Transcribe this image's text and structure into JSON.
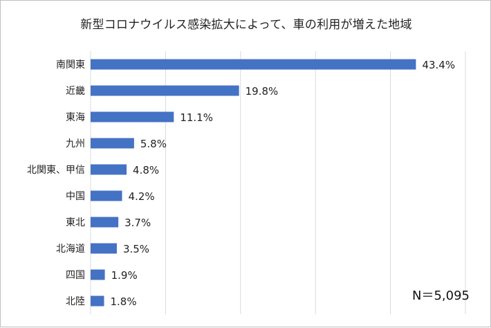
{
  "chart_data": {
    "type": "bar",
    "orientation": "horizontal",
    "title": "新型コロナウイルス感染拡大によって、車の利用が増えた地域",
    "categories": [
      "南関東",
      "近畿",
      "東海",
      "九州",
      "北関東、甲信",
      "中国",
      "東北",
      "北海道",
      "四国",
      "北陸"
    ],
    "values": [
      43.4,
      19.8,
      11.1,
      5.8,
      4.8,
      4.2,
      3.7,
      3.5,
      1.9,
      1.8
    ],
    "value_labels": [
      "43.4%",
      "19.8%",
      "11.1%",
      "5.8%",
      "4.8%",
      "4.2%",
      "3.7%",
      "3.5%",
      "1.9%",
      "1.8%"
    ],
    "xlim": [
      0,
      50
    ],
    "grid": true,
    "bar_color": "#4472c4",
    "note": "N＝5,095"
  }
}
